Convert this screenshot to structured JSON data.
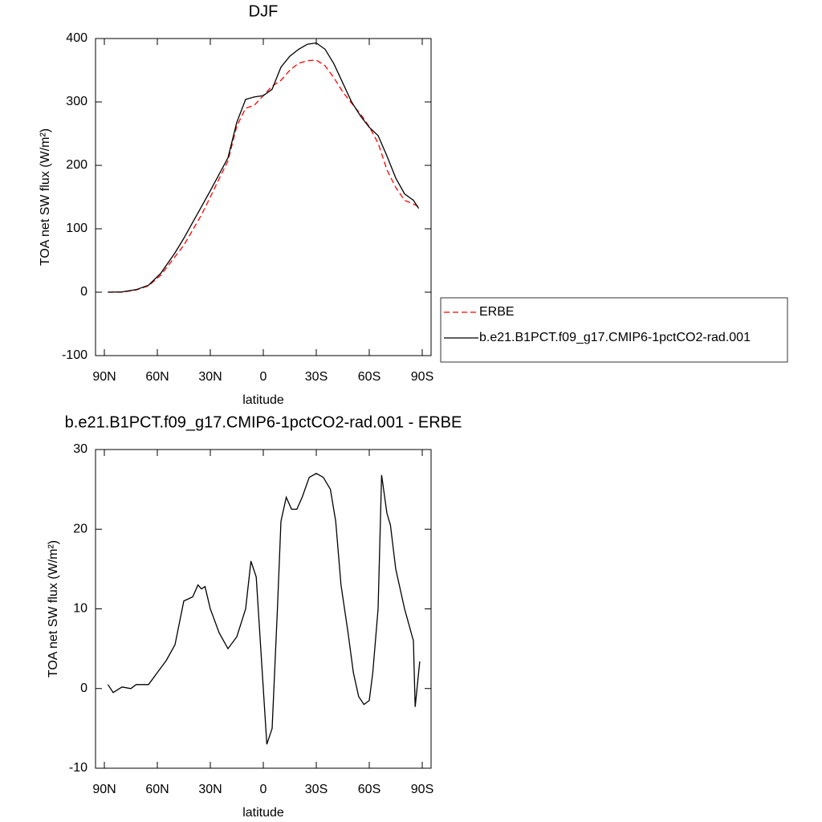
{
  "chart_data": [
    {
      "type": "line",
      "title": "DJF",
      "xlabel": "latitude",
      "ylabel": "TOA net SW flux (W/m²)",
      "x": [
        88,
        80,
        72,
        65,
        58,
        50,
        45,
        40,
        35,
        30,
        25,
        20,
        15,
        10,
        5,
        0,
        -5,
        -10,
        -15,
        -20,
        -25,
        -30,
        -35,
        -40,
        -45,
        -50,
        -55,
        -60,
        -65,
        -70,
        -75,
        -80,
        -85,
        -88
      ],
      "series": [
        {
          "name": "ERBE",
          "color": "#ff0000",
          "line_style": "dashed",
          "values": [
            0,
            0,
            3.5,
            10,
            27,
            56,
            74,
            98,
            122,
            150,
            179,
            207,
            262,
            290,
            295,
            310,
            325,
            334,
            350,
            361,
            365,
            366,
            357,
            338,
            316,
            298,
            281,
            261,
            235,
            193,
            165,
            145,
            139,
            135
          ]
        },
        {
          "name": "b.e21.B1PCT.f09_g17.CMIP6-1pctCO2-rad.001",
          "color": "#000000",
          "line_style": "solid",
          "values": [
            0,
            0.5,
            4,
            11,
            30,
            62,
            85,
            110,
            135,
            160,
            186,
            212,
            268,
            304,
            308,
            310,
            320,
            355,
            372,
            383,
            391,
            393,
            383,
            360,
            330,
            300,
            278,
            260,
            247,
            215,
            180,
            155,
            145,
            132
          ]
        }
      ],
      "xlim": [
        95,
        -95
      ],
      "xticks": [
        {
          "value": 90,
          "label": "90N"
        },
        {
          "value": 60,
          "label": "60N"
        },
        {
          "value": 30,
          "label": "30N"
        },
        0,
        {
          "value": -30,
          "label": "30S"
        },
        {
          "value": -60,
          "label": "60S"
        },
        {
          "value": -90,
          "label": "90S"
        }
      ],
      "ylim": [
        -100,
        400
      ],
      "yticks": [
        -100,
        0,
        100,
        200,
        300,
        400
      ],
      "legend": "right"
    },
    {
      "type": "line",
      "title": "b.e21.B1PCT.f09_g17.CMIP6-1pctCO2-rad.001 - ERBE",
      "xlabel": "latitude",
      "ylabel": "TOA net SW flux (W/m²)",
      "x": [
        88,
        85,
        80,
        75,
        72,
        65,
        60,
        55,
        50,
        45,
        40,
        37,
        35,
        33,
        30,
        25,
        20,
        15,
        10,
        7,
        4,
        0,
        -2,
        -5,
        -8,
        -10,
        -13,
        -16,
        -19,
        -22,
        -26,
        -30,
        -34,
        -38,
        -41,
        -44,
        -48,
        -51,
        -54,
        -57,
        -60,
        -62,
        -65,
        -67,
        -70,
        -72,
        -75,
        -80,
        -85,
        -86,
        -88.6
      ],
      "values": [
        0.5,
        -0.5,
        0.2,
        0,
        0.5,
        0.5,
        2,
        3.5,
        5.5,
        11,
        11.5,
        13,
        12.5,
        12.8,
        10,
        7,
        5,
        6.5,
        10,
        16,
        14,
        0,
        -7,
        -5,
        10,
        21,
        24,
        22.5,
        22.5,
        24,
        26.5,
        27,
        26.5,
        25,
        21,
        13,
        7,
        2,
        -1,
        -2,
        -1.5,
        2,
        10,
        26.8,
        22,
        20.5,
        15,
        10,
        6,
        -2.3,
        3.4
      ],
      "color": "#000000",
      "xlim": [
        95,
        -95
      ],
      "xticks": [
        {
          "value": 90,
          "label": "90N"
        },
        {
          "value": 60,
          "label": "60N"
        },
        {
          "value": 30,
          "label": "30N"
        },
        0,
        {
          "value": -30,
          "label": "30S"
        },
        {
          "value": -60,
          "label": "60S"
        },
        {
          "value": -90,
          "label": "90S"
        }
      ],
      "ylim": [
        -10,
        30
      ],
      "yticks": [
        -10,
        0,
        10,
        20,
        30
      ]
    }
  ]
}
